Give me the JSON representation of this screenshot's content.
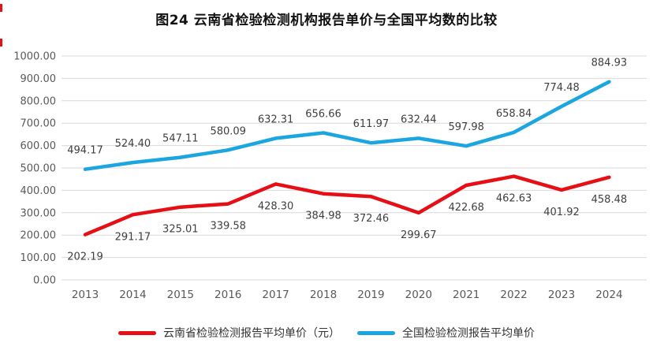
{
  "page": {
    "title": "图24 云南省检验检测机构报告单价与全国平均数的比较"
  },
  "colors": {
    "yunnan_red": "#e60f16",
    "national_blue": "#1ca6e0",
    "gridline": "#d9d9d9",
    "axis_text": "#595959",
    "data_label_text": "#3f3f3f",
    "title_text": "#111111",
    "edge_mark": "#e60f16",
    "background": "#ffffff"
  },
  "chart_data": {
    "type": "line",
    "title": "图24 云南省检验检测机构报告单价与全国平均数的比较",
    "categories": [
      "2013",
      "2014",
      "2015",
      "2016",
      "2017",
      "2018",
      "2019",
      "2020",
      "2021",
      "2022",
      "2023",
      "2024"
    ],
    "series": [
      {
        "name": "云南省检验检测报告平均单价（元）",
        "color": "#e60f16",
        "label_position": "below",
        "values": [
          202.19,
          291.17,
          325.01,
          339.58,
          428.3,
          384.98,
          372.46,
          299.67,
          422.68,
          462.63,
          401.92,
          458.48
        ]
      },
      {
        "name": "全国检验检测报告平均单价",
        "color": "#1ca6e0",
        "label_position": "above",
        "values": [
          494.17,
          524.4,
          547.11,
          580.09,
          632.31,
          656.66,
          611.97,
          632.44,
          597.98,
          658.84,
          774.48,
          884.93
        ]
      }
    ],
    "ylim": [
      0,
      1000
    ],
    "y_tick_step": 100,
    "y_tick_labels": [
      "0.00",
      "100.00",
      "200.00",
      "300.00",
      "400.00",
      "500.00",
      "600.00",
      "700.00",
      "800.00",
      "900.00",
      "1000.00"
    ],
    "grid": "horizontal",
    "data_labels": true,
    "data_label_decimals": 2,
    "legend_position": "bottom"
  }
}
